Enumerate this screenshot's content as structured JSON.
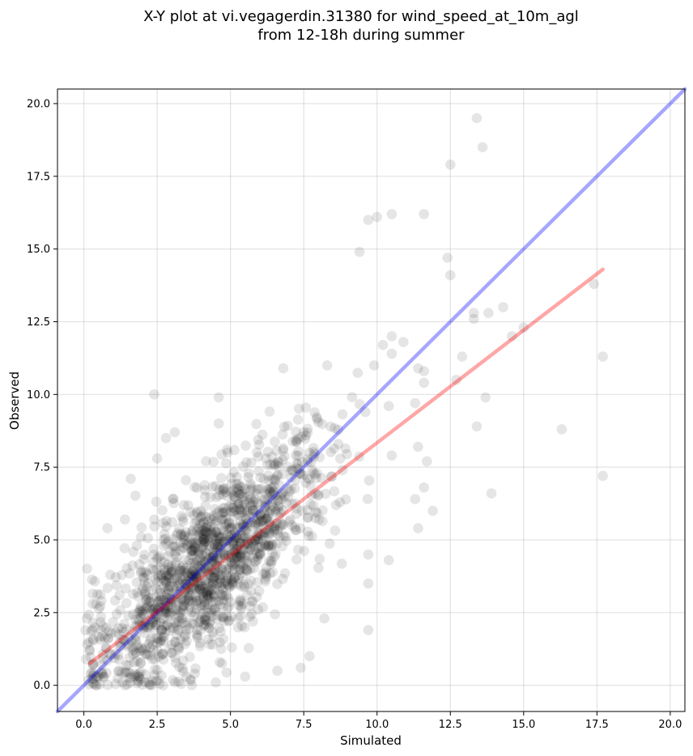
{
  "chart_data": {
    "type": "scatter",
    "title": [
      "X-Y plot at vi.vegagerdin.31380 for wind_speed_at_10m_agl",
      "from 12-18h during summer"
    ],
    "xlabel": "Simulated",
    "ylabel": "Observed",
    "xlim": [
      -0.9,
      20.5
    ],
    "ylim": [
      -0.9,
      20.5
    ],
    "xticks": [
      0.0,
      2.5,
      5.0,
      7.5,
      10.0,
      12.5,
      15.0,
      17.5,
      20.0
    ],
    "yticks": [
      0.0,
      2.5,
      5.0,
      7.5,
      10.0,
      12.5,
      15.0,
      17.5,
      20.0
    ],
    "tick_labels": [
      "0.0",
      "2.5",
      "5.0",
      "7.5",
      "10.0",
      "12.5",
      "15.0",
      "17.5",
      "20.0"
    ],
    "grid": true,
    "marker_color": "#000000",
    "marker_alpha": 0.1,
    "series": [
      {
        "type": "scatter",
        "points_note": "dense cloud of observations, centered near (4, 4)",
        "points": [
          [
            13.4,
            19.5
          ],
          [
            13.6,
            18.5
          ],
          [
            12.5,
            17.9
          ],
          [
            10.5,
            16.2
          ],
          [
            10.0,
            16.1
          ],
          [
            9.7,
            16.0
          ],
          [
            11.6,
            16.2
          ],
          [
            9.4,
            14.9
          ],
          [
            12.4,
            14.7
          ],
          [
            12.5,
            14.1
          ],
          [
            17.4,
            13.8
          ],
          [
            14.3,
            13.0
          ],
          [
            13.3,
            12.8
          ],
          [
            13.3,
            12.6
          ],
          [
            13.8,
            12.8
          ],
          [
            15.0,
            12.3
          ],
          [
            14.6,
            12.0
          ],
          [
            10.5,
            12.0
          ],
          [
            10.9,
            11.8
          ],
          [
            10.2,
            11.7
          ],
          [
            10.5,
            11.4
          ],
          [
            12.9,
            11.3
          ],
          [
            17.7,
            11.3
          ],
          [
            9.9,
            11.0
          ],
          [
            11.6,
            10.8
          ],
          [
            8.3,
            11.0
          ],
          [
            6.8,
            10.9
          ],
          [
            12.7,
            10.5
          ],
          [
            11.4,
            10.9
          ],
          [
            11.6,
            10.4
          ],
          [
            2.4,
            10.0
          ],
          [
            4.6,
            9.9
          ],
          [
            13.7,
            9.9
          ],
          [
            11.3,
            9.7
          ],
          [
            10.4,
            9.6
          ],
          [
            9.6,
            9.4
          ],
          [
            13.4,
            8.9
          ],
          [
            16.3,
            8.8
          ],
          [
            4.6,
            9.0
          ],
          [
            3.1,
            8.7
          ],
          [
            2.8,
            8.5
          ],
          [
            11.4,
            8.2
          ],
          [
            2.5,
            7.8
          ],
          [
            1.6,
            7.1
          ],
          [
            11.7,
            7.7
          ],
          [
            10.5,
            7.9
          ],
          [
            17.7,
            7.2
          ],
          [
            11.6,
            6.8
          ],
          [
            13.9,
            6.6
          ],
          [
            11.3,
            6.4
          ],
          [
            11.9,
            6.0
          ],
          [
            0.8,
            5.4
          ],
          [
            1.4,
            5.7
          ],
          [
            11.4,
            5.4
          ],
          [
            10.4,
            4.3
          ],
          [
            9.7,
            4.5
          ],
          [
            9.7,
            3.5
          ],
          [
            9.7,
            1.9
          ],
          [
            7.7,
            1.0
          ],
          [
            7.4,
            0.6
          ],
          [
            6.6,
            0.5
          ],
          [
            0.4,
            0.0
          ],
          [
            1.4,
            0.0
          ],
          [
            2.7,
            0.0
          ],
          [
            0.9,
            3.8
          ],
          [
            0.3,
            2.8
          ],
          [
            0.1,
            2.3
          ],
          [
            0.2,
            1.2
          ],
          [
            0.6,
            2.9
          ],
          [
            8.2,
            2.3
          ],
          [
            4.5,
            0.1
          ],
          [
            5.5,
            0.3
          ],
          [
            3.5,
            0.3
          ],
          [
            2.2,
            0.1
          ],
          [
            1.2,
            0.5
          ],
          [
            0.6,
            0.4
          ]
        ]
      },
      {
        "type": "line",
        "name": "",
        "color": "#0000ff",
        "alpha": 0.35,
        "x": [
          -0.9,
          20.5
        ],
        "y": [
          -0.9,
          20.5
        ]
      },
      {
        "type": "line",
        "name": "",
        "color": "#ff0000",
        "alpha": 0.35,
        "x": [
          0.2,
          17.7
        ],
        "y": [
          0.75,
          14.3
        ]
      }
    ]
  }
}
